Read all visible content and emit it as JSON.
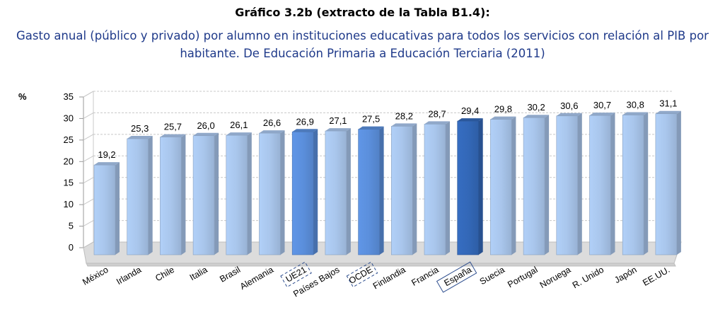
{
  "title": "Gráfico 3.2b (extracto de la Tabla B1.4):",
  "subtitle_line1": "Gasto anual (público y privado) por alumno en instituciones educativas para todos los servicios con relación al PIB por",
  "subtitle_line2": "habitante. De Educación Primaria a Educación Terciaria (2011)",
  "chart_data": {
    "type": "bar",
    "ylabel": "%",
    "ylim": [
      0,
      35
    ],
    "yticks": [
      0,
      5,
      10,
      15,
      20,
      25,
      30,
      35
    ],
    "grid": true,
    "categories": [
      "México",
      "Irlanda",
      "Chile",
      "Italia",
      "Brasil",
      "Alemania",
      "UE21",
      "Países Bajos",
      "OCDE",
      "Finlandia",
      "Francia",
      "España",
      "Suecia",
      "Portugal",
      "Noruega",
      "R. Unido",
      "Japón",
      "EE.UU."
    ],
    "values": [
      19.2,
      25.3,
      25.7,
      26.0,
      26.1,
      26.6,
      26.9,
      27.1,
      27.5,
      28.2,
      28.7,
      29.4,
      29.8,
      30.2,
      30.6,
      30.7,
      30.8,
      31.1
    ],
    "value_labels": [
      "19,2",
      "25,3",
      "25,7",
      "26,0",
      "26,1",
      "26,6",
      "26,9",
      "27,1",
      "27,5",
      "28,2",
      "28,7",
      "29,4",
      "29,8",
      "30,2",
      "30,6",
      "30,7",
      "30,8",
      "31,1"
    ],
    "highlight": {
      "UE21": "average",
      "OCDE": "average",
      "España": "focus"
    },
    "boxed_categories": [
      "UE21",
      "OCDE",
      "España"
    ],
    "colors": {
      "default": "#a9c6ec",
      "average": "#5b8fdc",
      "focus": "#3368b8",
      "grid": "#c8c8c8",
      "floor": "#dcdcdc"
    }
  }
}
